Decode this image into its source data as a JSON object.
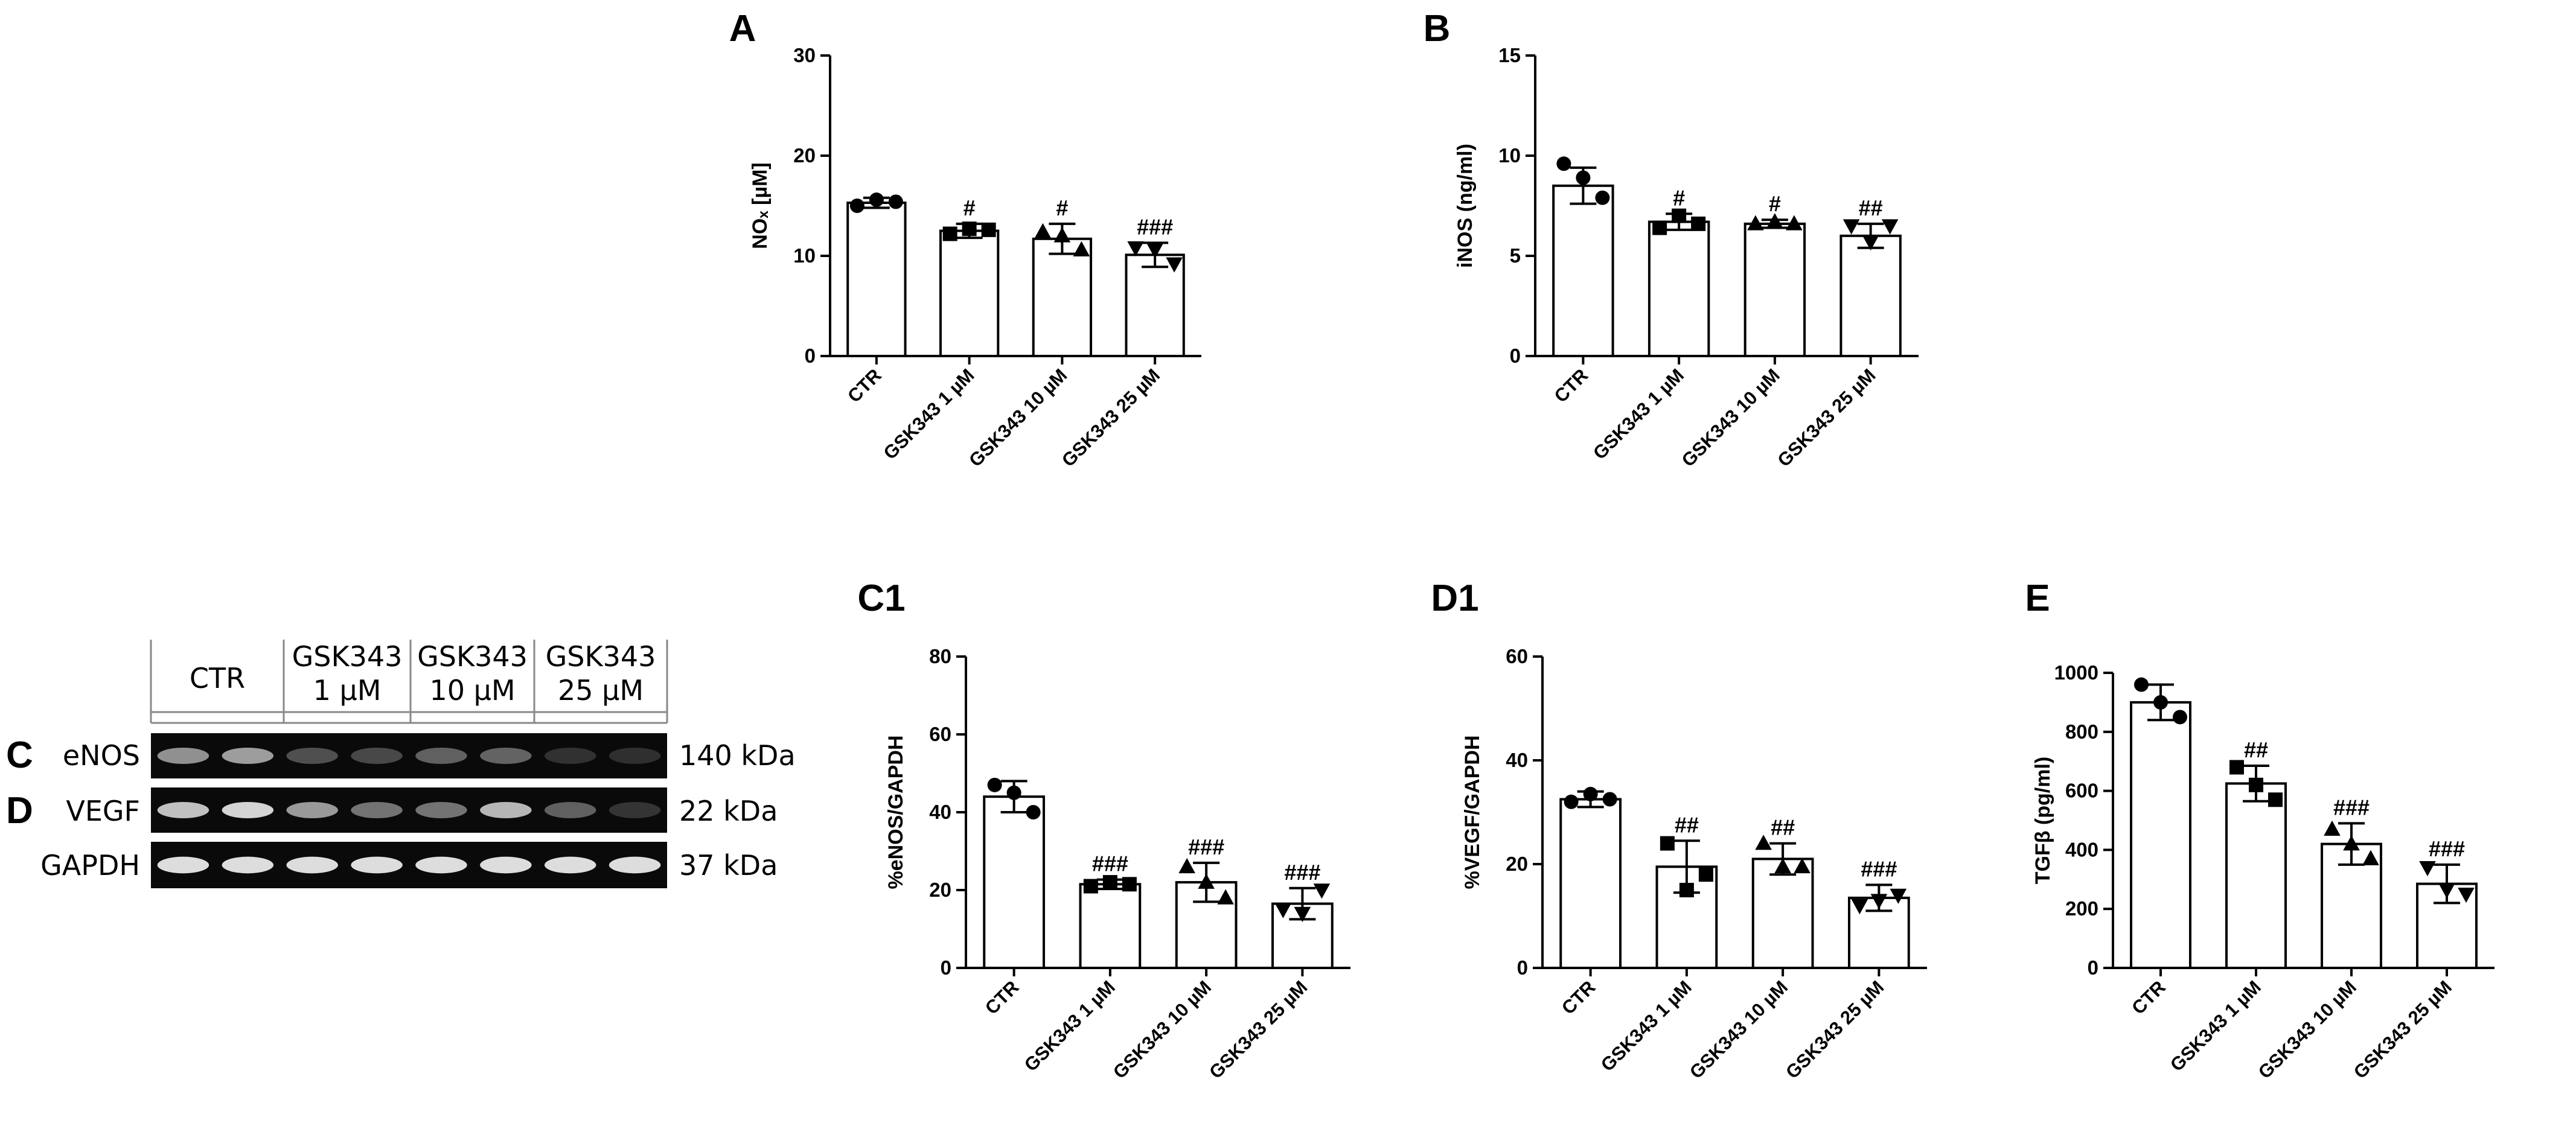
{
  "chart_data": [
    {
      "panel": "A",
      "type": "bar",
      "categories": [
        "CTR",
        "GSK343 1 µM",
        "GSK343 10 µM",
        "GSK343 25 µM"
      ],
      "values": [
        15.3,
        12.5,
        11.7,
        10.1
      ],
      "errors": [
        0.5,
        0.7,
        1.5,
        1.2
      ],
      "points": [
        [
          15.0,
          15.6,
          15.4
        ],
        [
          12.2,
          12.7,
          12.6
        ],
        [
          12.4,
          12.0,
          10.6
        ],
        [
          10.8,
          10.6,
          9.2
        ]
      ],
      "markers": [
        "circle",
        "square",
        "triangle",
        "triangle-down"
      ],
      "significance": [
        "",
        "#",
        "#",
        "###"
      ],
      "ylabel": "NOₓ [µM]",
      "ylim": [
        0,
        30
      ],
      "yticks": [
        0,
        10,
        20,
        30
      ]
    },
    {
      "panel": "B",
      "type": "bar",
      "categories": [
        "CTR",
        "GSK343 1 µM",
        "GSK343 10 µM",
        "GSK343 25 µM"
      ],
      "values": [
        8.5,
        6.7,
        6.6,
        6.0
      ],
      "errors": [
        0.9,
        0.4,
        0.2,
        0.6
      ],
      "points": [
        [
          9.6,
          8.9,
          7.9
        ],
        [
          6.4,
          7.0,
          6.6
        ],
        [
          6.6,
          6.7,
          6.6
        ],
        [
          6.5,
          5.7,
          6.5
        ]
      ],
      "markers": [
        "circle",
        "square",
        "triangle",
        "triangle-down"
      ],
      "significance": [
        "",
        "#",
        "#",
        "##"
      ],
      "ylabel": "iNOS (ng/ml)",
      "ylim": [
        0,
        15
      ],
      "yticks": [
        0,
        5,
        10,
        15
      ]
    },
    {
      "panel": "C1",
      "type": "bar",
      "categories": [
        "CTR",
        "GSK343 1 µM",
        "GSK343 10 µM",
        "GSK343 25 µM"
      ],
      "values": [
        44,
        21.5,
        22,
        16.5
      ],
      "errors": [
        4,
        1.2,
        5,
        4
      ],
      "points": [
        [
          47,
          45,
          40
        ],
        [
          21,
          22,
          21.5
        ],
        [
          26,
          22,
          18
        ],
        [
          15,
          14,
          20
        ]
      ],
      "markers": [
        "circle",
        "square",
        "triangle",
        "triangle-down"
      ],
      "significance": [
        "",
        "###",
        "###",
        "###"
      ],
      "ylabel": "%eNOS/GAPDH",
      "ylim": [
        0,
        80
      ],
      "yticks": [
        0,
        20,
        40,
        60,
        80
      ]
    },
    {
      "panel": "D1",
      "type": "bar",
      "categories": [
        "CTR",
        "GSK343 1 µM",
        "GSK343 10 µM",
        "GSK343 25 µM"
      ],
      "values": [
        32.5,
        19.5,
        21,
        13.5
      ],
      "errors": [
        1.5,
        5,
        3,
        2.5
      ],
      "points": [
        [
          32,
          33.5,
          32.5
        ],
        [
          24,
          15,
          18
        ],
        [
          24,
          19.5,
          19.5
        ],
        [
          12,
          13,
          14
        ]
      ],
      "markers": [
        "circle",
        "square",
        "triangle",
        "triangle-down"
      ],
      "significance": [
        "",
        "##",
        "##",
        "###"
      ],
      "ylabel": "%VEGF/GAPDH",
      "ylim": [
        0,
        60
      ],
      "yticks": [
        0,
        20,
        40,
        60
      ]
    },
    {
      "panel": "E",
      "type": "bar",
      "categories": [
        "CTR",
        "GSK343 1 µM",
        "GSK343 10 µM",
        "GSK343 25 µM"
      ],
      "values": [
        900,
        625,
        420,
        285
      ],
      "errors": [
        60,
        60,
        70,
        65
      ],
      "points": [
        [
          960,
          900,
          850
        ],
        [
          680,
          620,
          570
        ],
        [
          470,
          420,
          370
        ],
        [
          340,
          265,
          250
        ]
      ],
      "markers": [
        "circle",
        "square",
        "triangle",
        "triangle-down"
      ],
      "significance": [
        "",
        "##",
        "###",
        "###"
      ],
      "ylabel": "TGFβ (pg/ml)",
      "ylim": [
        0,
        1000
      ],
      "yticks": [
        0,
        200,
        400,
        600,
        800,
        1000
      ]
    }
  ],
  "western_blot": {
    "headers": [
      {
        "line1": "CTR",
        "line2": ""
      },
      {
        "line1": "GSK343",
        "line2": "1 μM"
      },
      {
        "line1": "GSK343",
        "line2": "10 μM"
      },
      {
        "line1": "GSK343",
        "line2": "25 μM"
      }
    ],
    "rows": [
      {
        "panel": "C",
        "protein": "eNOS",
        "size": "140 kDa",
        "intensities": [
          0.55,
          0.62,
          0.22,
          0.18,
          0.3,
          0.32,
          0.06,
          0.05
        ]
      },
      {
        "panel": "D",
        "protein": "VEGF",
        "size": "22 kDa",
        "intensities": [
          0.8,
          0.9,
          0.6,
          0.4,
          0.4,
          0.75,
          0.3,
          0.08
        ]
      },
      {
        "panel": "",
        "protein": "GAPDH",
        "size": "37 kDa",
        "intensities": [
          0.95,
          0.95,
          0.95,
          0.95,
          0.95,
          0.95,
          0.95,
          0.95
        ]
      }
    ]
  }
}
